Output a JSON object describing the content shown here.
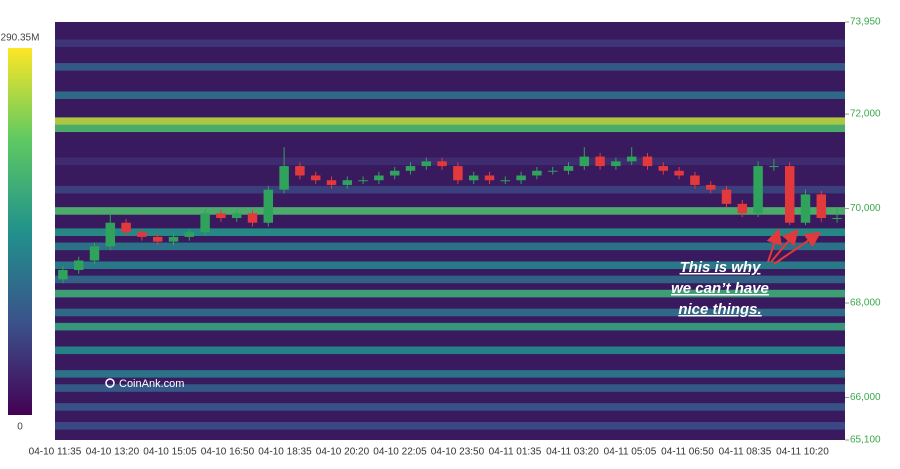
{
  "chart_data": {
    "type": "candlestick",
    "watermark": "CoinAnk.com",
    "annotation": [
      "This is why",
      "we can’t have",
      "nice things."
    ],
    "categories": [
      "04-10 11:35",
      "04-10 13:20",
      "04-10 15:05",
      "04-10 16:50",
      "04-10 18:35",
      "04-10 20:20",
      "04-10 22:05",
      "04-10 23:50",
      "04-11 01:35",
      "04-11 03:20",
      "04-11 05:05",
      "04-11 06:50",
      "04-11 08:35",
      "04-11 10:20"
    ],
    "ylim": [
      65100,
      73950
    ],
    "yticks": [
      {
        "value": 65100,
        "label": "65,100"
      },
      {
        "value": 66000,
        "label": "66,000"
      },
      {
        "value": 68000,
        "label": "68,000"
      },
      {
        "value": 70000,
        "label": "70,000"
      },
      {
        "value": 72000,
        "label": "72,000"
      },
      {
        "value": 73950,
        "label": "73,950"
      }
    ],
    "up_color": "#2fa35c",
    "down_color": "#e2393c",
    "open": [
      68500,
      68700,
      68900,
      69200,
      69700,
      69500,
      69400,
      69300,
      69400,
      69500,
      69900,
      69800,
      69900,
      69700,
      70400,
      70900,
      70700,
      70600,
      70500,
      70600,
      70600,
      70700,
      70800,
      70900,
      71000,
      70900,
      70600,
      70700,
      70600,
      70600,
      70700,
      70800,
      70800,
      70900,
      71100,
      70900,
      71000,
      71100,
      70900,
      70800,
      70700,
      70500,
      70400,
      70100,
      69900,
      70900,
      70900,
      69700,
      70300,
      69800
    ],
    "high": [
      68780,
      68980,
      69280,
      69900,
      69780,
      69580,
      69480,
      69480,
      69580,
      69980,
      69980,
      69980,
      69980,
      70480,
      71300,
      70980,
      70780,
      70680,
      70680,
      70680,
      70780,
      70880,
      70980,
      71080,
      71080,
      70980,
      70780,
      70780,
      70680,
      70780,
      70880,
      70880,
      70980,
      71300,
      71180,
      71080,
      71300,
      71180,
      70980,
      70880,
      70780,
      70580,
      70480,
      70180,
      71000,
      71050,
      70980,
      70400,
      70380,
      70000
    ],
    "low": [
      68420,
      68620,
      68820,
      69120,
      69420,
      69320,
      69220,
      69220,
      69320,
      69420,
      69720,
      69720,
      69620,
      69620,
      70320,
      70620,
      70520,
      70420,
      70420,
      70520,
      70520,
      70620,
      70720,
      70820,
      70820,
      70520,
      70520,
      70520,
      70520,
      70520,
      70620,
      70720,
      70720,
      70820,
      70820,
      70820,
      70920,
      70820,
      70720,
      70620,
      70420,
      70320,
      70020,
      69820,
      69820,
      70800,
      69650,
      69650,
      69720,
      69700
    ],
    "close": [
      68700,
      68900,
      69200,
      69700,
      69500,
      69400,
      69300,
      69400,
      69500,
      69900,
      69800,
      69900,
      69700,
      70400,
      70900,
      70700,
      70600,
      70500,
      70600,
      70600,
      70700,
      70800,
      70900,
      71000,
      70900,
      70600,
      70700,
      70600,
      70600,
      70700,
      70800,
      70800,
      70900,
      71100,
      70900,
      71000,
      71100,
      70900,
      70800,
      70700,
      70500,
      70400,
      70100,
      69900,
      70900,
      70900,
      69700,
      70300,
      69800,
      69800
    ],
    "heatmap": {
      "zlim": [
        {
          "value": 0,
          "label": "0"
        },
        {
          "value": 290.35,
          "label": "290.35M"
        }
      ],
      "levels": [
        73500,
        73000,
        72400,
        71850,
        71700,
        71000,
        70400,
        69950,
        69500,
        69200,
        68800,
        68500,
        68200,
        67800,
        67500,
        67000,
        66500,
        66200,
        65800,
        65400
      ],
      "values": [
        50,
        90,
        110,
        260,
        200,
        40,
        60,
        200,
        150,
        120,
        130,
        100,
        180,
        110,
        170,
        140,
        120,
        90,
        80,
        70
      ]
    }
  }
}
